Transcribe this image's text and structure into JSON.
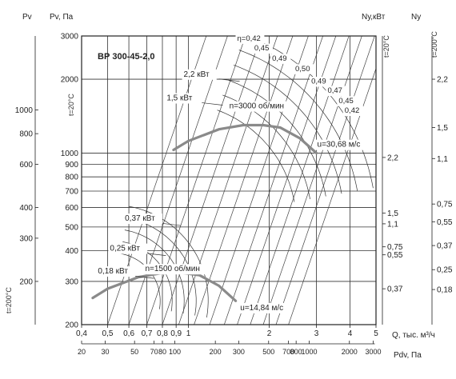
{
  "chart_data": {
    "type": "line",
    "title": "ВР 300-45-2,0",
    "axis_labels": {
      "pv_top": "Pv",
      "pv_main": "Pv, Па",
      "nu_top": "Nу,кВт",
      "nu_right": "Nу",
      "t20_left": "t=20°C",
      "t200_left": "t=200°C",
      "t20_right": "t=20°C",
      "t200_right": "t=200°C",
      "xlabel": "Q, тыс. м³/ч",
      "pdv_label": "Pdv, Па"
    },
    "x_ticks": [
      "0,4",
      "0,5",
      "0,6",
      "0,7",
      "0,8",
      "0,9",
      "1",
      "2",
      "3",
      "4",
      "5"
    ],
    "x_tick_values": [
      0.4,
      0.5,
      0.6,
      0.7,
      0.8,
      0.9,
      1,
      2,
      3,
      4,
      5
    ],
    "xlim": [
      0.4,
      5
    ],
    "ylim": [
      200,
      3000
    ],
    "y_ticks": [
      "3000",
      "2000",
      "1000",
      "900",
      "800",
      "700",
      "600",
      "500",
      "400",
      "300",
      "200"
    ],
    "y_tick_values": [
      3000,
      2000,
      1000,
      900,
      800,
      700,
      600,
      500,
      400,
      300,
      200
    ],
    "pv_left_ticks": [
      {
        "label": "1000",
        "value": 1500
      },
      {
        "label": "800",
        "value": 1200
      },
      {
        "label": "600",
        "value": 900
      },
      {
        "label": "400",
        "value": 600
      },
      {
        "label": "300",
        "value": 450
      },
      {
        "label": "200",
        "value": 300
      }
    ],
    "pdv_ticks": [
      {
        "label": "20",
        "q": 0.4
      },
      {
        "label": "30",
        "q": 0.49
      },
      {
        "label": "50",
        "q": 0.63
      },
      {
        "label": "70",
        "q": 0.745
      },
      {
        "label": "80",
        "q": 0.8
      },
      {
        "label": "100",
        "q": 0.89
      },
      {
        "label": "200",
        "q": 1.26
      },
      {
        "label": "300",
        "q": 1.54
      },
      {
        "label": "500",
        "q": 1.99
      },
      {
        "label": "700",
        "q": 2.36
      },
      {
        "label": "800",
        "q": 2.52
      },
      {
        "label": "1000",
        "q": 2.82
      },
      {
        "label": "2000",
        "q": 3.98
      },
      {
        "label": "3000",
        "q": 4.88
      }
    ],
    "nu_t20_ticks": [
      {
        "label": "2,2",
        "value": 960
      },
      {
        "label": "1,5",
        "value": 570
      },
      {
        "label": "1,1",
        "value": 515
      },
      {
        "label": "0,75",
        "value": 415
      },
      {
        "label": "0,55",
        "value": 385
      },
      {
        "label": "0,37",
        "value": 280
      }
    ],
    "nu_t200_ticks": [
      {
        "label": "2,2",
        "value": 2000
      },
      {
        "label": "1,5",
        "value": 1270
      },
      {
        "label": "1,1",
        "value": 950
      },
      {
        "label": "0,75",
        "value": 620
      },
      {
        "label": "0,55",
        "value": 525
      },
      {
        "label": "0,37",
        "value": 420
      },
      {
        "label": "0,25",
        "value": 335
      },
      {
        "label": "0,18",
        "value": 278
      }
    ],
    "speed_curves": [
      {
        "name": "n=3000 об/мин",
        "q": [
          0.88,
          1.0,
          1.3,
          1.6,
          1.9,
          2.2,
          2.6,
          3.0
        ],
        "p": [
          1030,
          1120,
          1250,
          1300,
          1300,
          1270,
          1150,
          1000
        ]
      },
      {
        "name": "n=1500 об/мин",
        "q": [
          0.44,
          0.5,
          0.65,
          0.8,
          0.95,
          1.1,
          1.3,
          1.5
        ],
        "p": [
          257,
          280,
          312,
          325,
          325,
          318,
          288,
          250
        ]
      }
    ],
    "speed_labels": [
      {
        "text": "n=3000 об/мин",
        "q": 1.42,
        "p": 1520
      },
      {
        "text": "n=1500 об/мин",
        "q": 0.69,
        "p": 330
      }
    ],
    "velocity_labels": [
      {
        "text": "u=30,68 м/с",
        "q": 3.02,
        "p": 1060
      },
      {
        "text": "u=14,84 м/с",
        "q": 1.56,
        "p": 229
      }
    ],
    "efficiency_labels": [
      {
        "text": "η=0,42",
        "q": 1.52,
        "p": 2870
      },
      {
        "text": "0,45",
        "q": 1.76,
        "p": 2620
      },
      {
        "text": "0,49",
        "q": 2.05,
        "p": 2380
      },
      {
        "text": "0,50",
        "q": 2.5,
        "p": 2160
      },
      {
        "text": "0,49",
        "q": 2.87,
        "p": 1920
      },
      {
        "text": "0,47",
        "q": 3.3,
        "p": 1760
      },
      {
        "text": "0,45",
        "q": 3.63,
        "p": 1600
      },
      {
        "text": "0,42",
        "q": 3.82,
        "p": 1460
      }
    ],
    "power_labels": [
      {
        "text": "2,2 кВт",
        "q": 0.96,
        "p": 2050
      },
      {
        "text": "1,5 кВт",
        "q": 0.83,
        "p": 1640
      },
      {
        "text": "0,37 кВт",
        "q": 0.58,
        "p": 530
      },
      {
        "text": "0,25 кВт",
        "q": 0.51,
        "p": 400
      },
      {
        "text": "0,18 кВт",
        "q": 0.46,
        "p": 323
      }
    ],
    "grid": true
  }
}
